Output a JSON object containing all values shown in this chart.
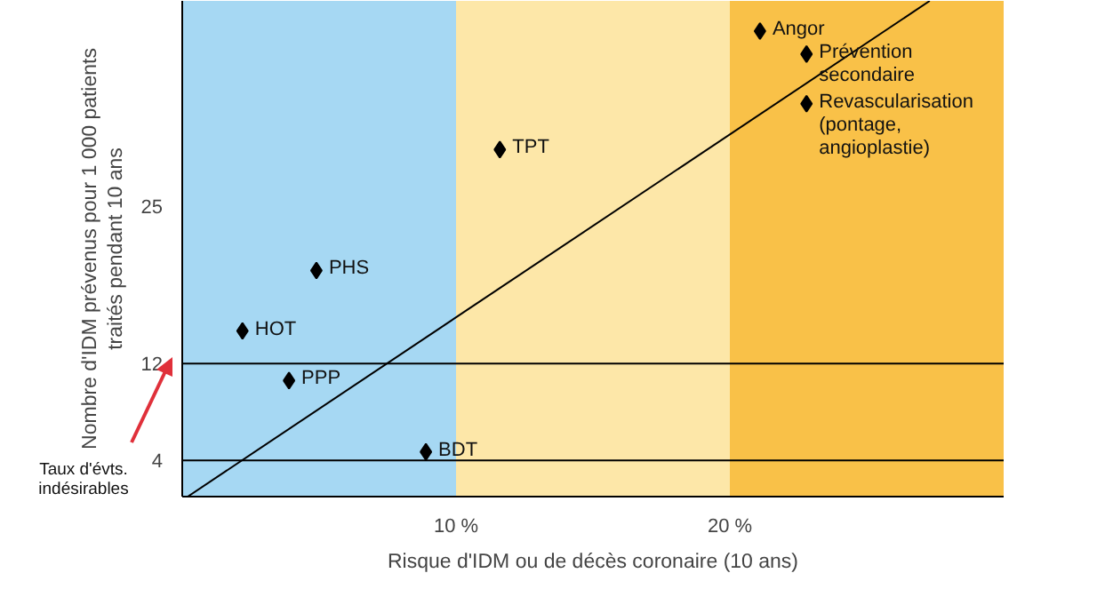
{
  "chart_data": {
    "type": "scatter",
    "xlabel": "Risque d'IDM ou de décès coronaire (10 ans)",
    "ylabel": "Nombre d'IDM prévenus pour 1 000 patients\ntraités pendant 10 ans",
    "xlim": [
      0,
      30
    ],
    "ylim": [
      1,
      42
    ],
    "xticks": [
      {
        "value": 10,
        "label": "10 %"
      },
      {
        "value": 20,
        "label": "20 %"
      }
    ],
    "yticks": [
      4,
      12,
      25
    ],
    "marker": "diamond",
    "series": [
      {
        "color": "#000000",
        "x": [
          21.1,
          22.8,
          22.8,
          11.6,
          4.9,
          2.2,
          3.9,
          8.9
        ],
        "values": [
          39.5,
          37.6,
          33.5,
          29.7,
          19.7,
          14.7,
          10.6,
          4.7
        ]
      },
      {
        "type": "line",
        "marker": "none",
        "color": "#000000",
        "x": [
          0.2,
          27.3
        ],
        "values": [
          1,
          42
        ]
      }
    ],
    "bands": [
      {
        "axis": "x",
        "from": 0,
        "to": 10,
        "color": "#a6d8f3"
      },
      {
        "axis": "x",
        "from": 10,
        "to": 20,
        "color": "#fde7a8"
      },
      {
        "axis": "x",
        "from": 20,
        "to": 30,
        "color": "#f9c148"
      }
    ],
    "ref_lines": [
      {
        "axis": "y",
        "value": 12,
        "color": "#000000"
      },
      {
        "axis": "y",
        "value": 4,
        "color": "#000000"
      }
    ],
    "annotations": [
      {
        "text": "Angor",
        "x": 21.1,
        "y": 39.5
      },
      {
        "text": "Prévention\nsecondaire",
        "x": 22.8,
        "y": 37.6
      },
      {
        "text": "Revascularisation\n(pontage,\nangioplastie)",
        "x": 22.8,
        "y": 33.5
      },
      {
        "text": "TPT",
        "x": 11.6,
        "y": 29.7
      },
      {
        "text": "PHS",
        "x": 4.9,
        "y": 19.7
      },
      {
        "text": "HOT",
        "x": 2.2,
        "y": 14.7
      },
      {
        "text": "PPP",
        "x": 3.9,
        "y": 10.6
      },
      {
        "text": "BDT",
        "x": 8.9,
        "y": 4.7
      },
      "Taux d'évts.\nindésirables"
    ]
  }
}
